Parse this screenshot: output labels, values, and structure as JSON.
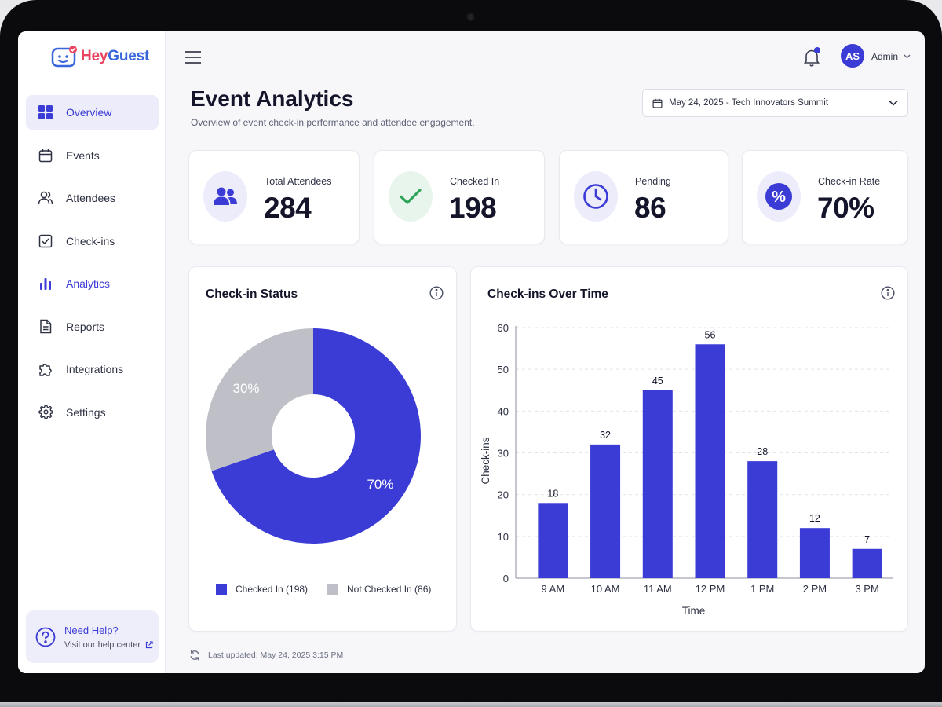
{
  "app": {
    "logo": {
      "hey": "Hey",
      "guest": "Guest"
    }
  },
  "sidebar": {
    "items": [
      {
        "label": "Overview",
        "icon": "grid-icon"
      },
      {
        "label": "Events",
        "icon": "calendar-icon"
      },
      {
        "label": "Attendees",
        "icon": "users-icon"
      },
      {
        "label": "Check-ins",
        "icon": "checkbox-icon"
      },
      {
        "label": "Analytics",
        "icon": "bar-chart-icon"
      },
      {
        "label": "Reports",
        "icon": "document-icon"
      },
      {
        "label": "Integrations",
        "icon": "puzzle-icon"
      },
      {
        "label": "Settings",
        "icon": "gear-icon"
      }
    ],
    "help": {
      "title": "Need Help?",
      "link": "Visit our help center"
    }
  },
  "header": {
    "avatar_initials": "AS",
    "user": "Admin",
    "page_title": "Event Analytics",
    "page_subtitle": "Overview of event check-in performance and attendee engagement.",
    "event_select": "May 24, 2025 - Tech Innovators Summit"
  },
  "stats": [
    {
      "label": "Total Attendees",
      "value": "284",
      "icon": "users-icon"
    },
    {
      "label": "Checked In",
      "value": "198",
      "icon": "check-icon"
    },
    {
      "label": "Pending",
      "value": "86",
      "icon": "clock-icon"
    },
    {
      "label": "Check-in Rate",
      "value": "70%",
      "icon": "percent-icon"
    }
  ],
  "donut_panel": {
    "title": "Check-in Status",
    "legend": [
      "Checked In (198)",
      "Not Checked In (86)"
    ]
  },
  "bar_panel": {
    "title": "Check-ins Over Time"
  },
  "colors": {
    "accent": "#3b3bd6",
    "muted": "#bfc0c7",
    "success": "#2fa55a"
  },
  "chart_data": [
    {
      "type": "pie",
      "title": "Check-in Status",
      "labels": [
        "Checked In (198)",
        "Not Checked In (86)"
      ],
      "values": [
        198,
        86
      ],
      "data_labels": [
        "70%",
        "30%"
      ],
      "colors": [
        "#3b3bd6",
        "#bfc0c7"
      ],
      "hole": true
    },
    {
      "type": "bar",
      "title": "Check-ins Over Time",
      "categories": [
        "9 AM",
        "10 AM",
        "11 AM",
        "12 PM",
        "1 PM",
        "2 PM",
        "3 PM"
      ],
      "values": [
        18,
        32,
        45,
        56,
        28,
        12,
        7
      ],
      "xlabel": "Time",
      "ylabel": "Check-ins",
      "ylim": [
        0,
        60
      ],
      "yticks": [
        0,
        10,
        20,
        30,
        40,
        50,
        60
      ],
      "grid": true
    }
  ],
  "footer": {
    "last_updated": "Last updated: May 24, 2025 3:15 PM"
  }
}
